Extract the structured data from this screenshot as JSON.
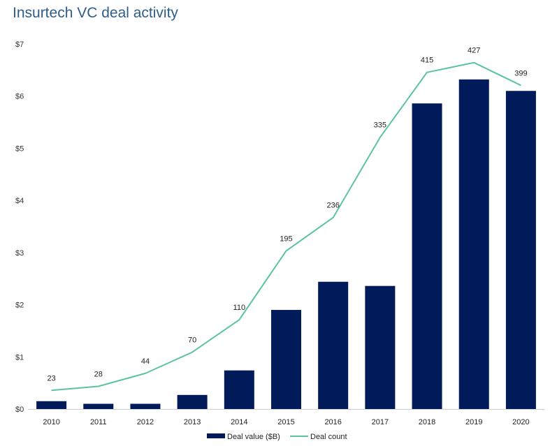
{
  "chart_data": {
    "type": "bar",
    "title": "Insurtech VC deal activity",
    "categories": [
      "2010",
      "2011",
      "2012",
      "2013",
      "2014",
      "2015",
      "2016",
      "2017",
      "2018",
      "2019",
      "2020"
    ],
    "series": [
      {
        "name": "Deal value ($B)",
        "type": "bar",
        "color": "#001a5a",
        "axis": "left",
        "values": [
          0.15,
          0.1,
          0.1,
          0.27,
          0.74,
          1.9,
          2.44,
          2.36,
          5.86,
          6.32,
          6.1
        ]
      },
      {
        "name": "Deal count",
        "type": "line",
        "color": "#5bc3a0",
        "axis": "right",
        "values": [
          23,
          28,
          44,
          70,
          110,
          195,
          236,
          335,
          415,
          427,
          399
        ]
      }
    ],
    "y_axis": {
      "min": 0,
      "max": 7,
      "ticks": [
        {
          "value": 0,
          "label": "$0"
        },
        {
          "value": 1,
          "label": "$1"
        },
        {
          "value": 2,
          "label": "$2"
        },
        {
          "value": 3,
          "label": "$3"
        },
        {
          "value": 4,
          "label": "$4"
        },
        {
          "value": 5,
          "label": "$5"
        },
        {
          "value": 6,
          "label": "$6"
        },
        {
          "value": 7,
          "label": "$7"
        }
      ]
    },
    "y2_axis": {
      "min": 0,
      "max": 450,
      "visible": false
    },
    "grid": false,
    "legend": {
      "position": "bottom-center",
      "entries": [
        "Deal value ($B)",
        "Deal count"
      ]
    }
  }
}
